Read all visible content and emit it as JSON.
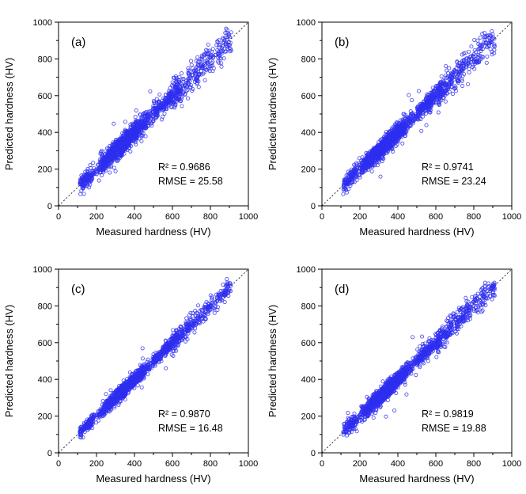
{
  "axes": {
    "xlabel": "Measured hardness (HV)",
    "ylabel": "Predicted hardness (HV)",
    "range": [
      0,
      1000
    ],
    "major_ticks": [
      0,
      200,
      400,
      600,
      800,
      1000
    ],
    "tick_labels": [
      "0",
      "200",
      "400",
      "600",
      "800",
      "1000"
    ],
    "minor_ticks": [
      100,
      300,
      500,
      700,
      900
    ],
    "grid": "off"
  },
  "style": {
    "background": "#ffffff",
    "marker_color": "#2e2ef0",
    "marker_shape": "open-circle",
    "identity_line_color": "#1a1a1a",
    "identity_line_style": "dotted",
    "frame_color": "#000000",
    "text_color": "#000000"
  },
  "chart_data": [
    {
      "type": "scatter",
      "panel_label": "(a)",
      "xlabel": "Measured hardness (HV)",
      "ylabel": "Predicted hardness (HV)",
      "xlim": [
        0,
        1000
      ],
      "ylim": [
        0,
        1000
      ],
      "r2": 0.9686,
      "rmse": 25.58,
      "annotations": [
        "R² = 0.9686",
        "RMSE = 25.58"
      ],
      "relationship": "y ≈ x; open blue circles densely packed around dotted identity line",
      "data_x_range": [
        110,
        905
      ],
      "n_points_approx": 1700,
      "legend": "none",
      "seed": 11
    },
    {
      "type": "scatter",
      "panel_label": "(b)",
      "xlabel": "Measured hardness (HV)",
      "ylabel": "Predicted hardness (HV)",
      "xlim": [
        0,
        1000
      ],
      "ylim": [
        0,
        1000
      ],
      "r2": 0.9741,
      "rmse": 23.24,
      "annotations": [
        "R² = 0.9741",
        "RMSE = 23.24"
      ],
      "relationship": "y ≈ x; open blue circles densely packed around dotted identity line",
      "data_x_range": [
        110,
        905
      ],
      "n_points_approx": 1700,
      "legend": "none",
      "seed": 22
    },
    {
      "type": "scatter",
      "panel_label": "(c)",
      "xlabel": "Measured hardness (HV)",
      "ylabel": "Predicted hardness (HV)",
      "xlim": [
        0,
        1000
      ],
      "ylim": [
        0,
        1000
      ],
      "r2": 0.987,
      "rmse": 16.48,
      "annotations": [
        "R² = 0.9870",
        "RMSE = 16.48"
      ],
      "relationship": "y ≈ x; tightest band of the four panels around dotted identity line",
      "data_x_range": [
        110,
        905
      ],
      "n_points_approx": 1700,
      "legend": "none",
      "seed": 33
    },
    {
      "type": "scatter",
      "panel_label": "(d)",
      "xlabel": "Measured hardness (HV)",
      "ylabel": "Predicted hardness (HV)",
      "xlim": [
        0,
        1000
      ],
      "ylim": [
        0,
        1000
      ],
      "r2": 0.9819,
      "rmse": 19.88,
      "annotations": [
        "R² = 0.9819",
        "RMSE = 19.88"
      ],
      "relationship": "y ≈ x; open blue circles densely packed around dotted identity line",
      "data_x_range": [
        110,
        905
      ],
      "n_points_approx": 1700,
      "legend": "none",
      "seed": 44
    }
  ]
}
